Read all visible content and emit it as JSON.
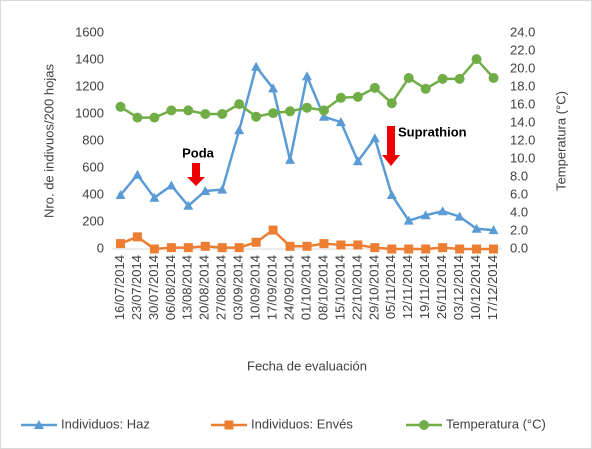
{
  "chart_data": {
    "type": "line",
    "x_label": "Fecha de evaluación",
    "y_label": "Nro. de indivuos/200 hojas",
    "y2_label": "Temperatura (°C)",
    "annotations": [
      "Poda",
      "Suprathion"
    ],
    "categories": [
      "16/07/2014",
      "23/07/2014",
      "30/07/2014",
      "06/08/2014",
      "13/08/2014",
      "20/08/2014",
      "27/08/2014",
      "03/09/2014",
      "10/09/2014",
      "17/09/2014",
      "24/09/2014",
      "01/10/2014",
      "08/10/2014",
      "15/10/2014",
      "22/10/2014",
      "29/10/2014",
      "05/11/2014",
      "12/11/2014",
      "19/11/2014",
      "26/11/2014",
      "03/12/2014",
      "10/12/2014",
      "17/12/2014"
    ],
    "series": [
      {
        "name": "Individuos: Haz",
        "color": "#5b9bd5",
        "marker": "triangle",
        "values": [
          400,
          550,
          380,
          470,
          320,
          430,
          440,
          880,
          1350,
          1190,
          660,
          1280,
          980,
          940,
          650,
          820,
          400,
          210,
          250,
          280,
          240,
          150,
          140
        ]
      },
      {
        "name": "Individuos: Envés",
        "color": "#ed7d31",
        "marker": "square",
        "values": [
          40,
          90,
          0,
          10,
          10,
          20,
          10,
          10,
          50,
          140,
          20,
          20,
          40,
          30,
          30,
          10,
          0,
          0,
          0,
          10,
          0,
          0,
          0
        ]
      },
      {
        "name": "Temperatura (°C)",
        "color": "#70ad47",
        "marker": "circle",
        "axis": "y2",
        "values": [
          15.8,
          14.6,
          14.6,
          15.4,
          15.4,
          15.0,
          15.0,
          16.1,
          14.7,
          15.1,
          15.3,
          15.7,
          15.4,
          16.8,
          16.9,
          17.9,
          16.2,
          19.0,
          17.8,
          18.9,
          18.9,
          21.1,
          19.0
        ]
      }
    ],
    "ylim": [
      0,
      1600
    ],
    "yticks": [
      0,
      200,
      400,
      600,
      800,
      1000,
      1200,
      1400,
      1600
    ],
    "y2lim": [
      0,
      24
    ],
    "y2ticks": [
      {
        "value": 0,
        "label": "0.0"
      },
      {
        "value": 2,
        "label": "2.0"
      },
      {
        "value": 4,
        "label": "4.0"
      },
      {
        "value": 6,
        "label": "6.0"
      },
      {
        "value": 8,
        "label": "8.0"
      },
      {
        "value": 10,
        "label": "10.0"
      },
      {
        "value": 12,
        "label": "12.0"
      },
      {
        "value": 14,
        "label": "14.0"
      },
      {
        "value": 16,
        "label": "16.0"
      },
      {
        "value": 18,
        "label": "18.0"
      },
      {
        "value": 20,
        "label": "20.0"
      },
      {
        "value": 22,
        "label": "22.0"
      },
      {
        "value": 24,
        "label": "24.0"
      }
    ],
    "legend": "bottom"
  }
}
